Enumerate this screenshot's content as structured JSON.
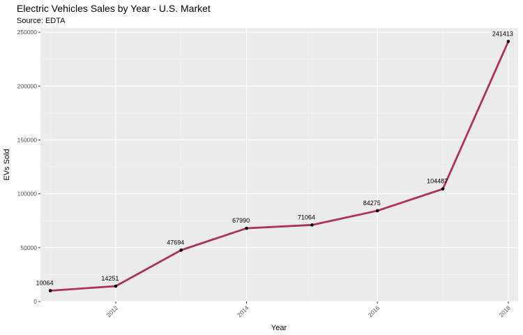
{
  "chart_data": {
    "type": "line",
    "title": "Electric Vehicles Sales by Year - U.S. Market",
    "subtitle": "Source: EDTA",
    "xlabel": "Year",
    "ylabel": "EVs Sold",
    "x": [
      2011,
      2012,
      2013,
      2014,
      2015,
      2016,
      2017,
      2018
    ],
    "values": [
      10064,
      14251,
      47694,
      67990,
      71064,
      84275,
      104487,
      241413
    ],
    "data_labels": [
      "10064",
      "14251",
      "47694",
      "67990",
      "71064",
      "84275",
      "104487",
      "241413"
    ],
    "x_ticks": [
      2012,
      2014,
      2016,
      2018
    ],
    "x_tick_labels": [
      "2012",
      "2014",
      "2016",
      "2018"
    ],
    "y_ticks": [
      0,
      50000,
      100000,
      150000,
      200000,
      250000
    ],
    "y_tick_labels": [
      "0",
      "50000",
      "100000",
      "150000",
      "200000",
      "250000"
    ],
    "xlim": [
      2010.85,
      2018.15
    ],
    "ylim": [
      0,
      254000
    ],
    "grid": true,
    "line_color": "#b03060",
    "point_color": "#000000",
    "panel_color": "#ebebeb"
  }
}
